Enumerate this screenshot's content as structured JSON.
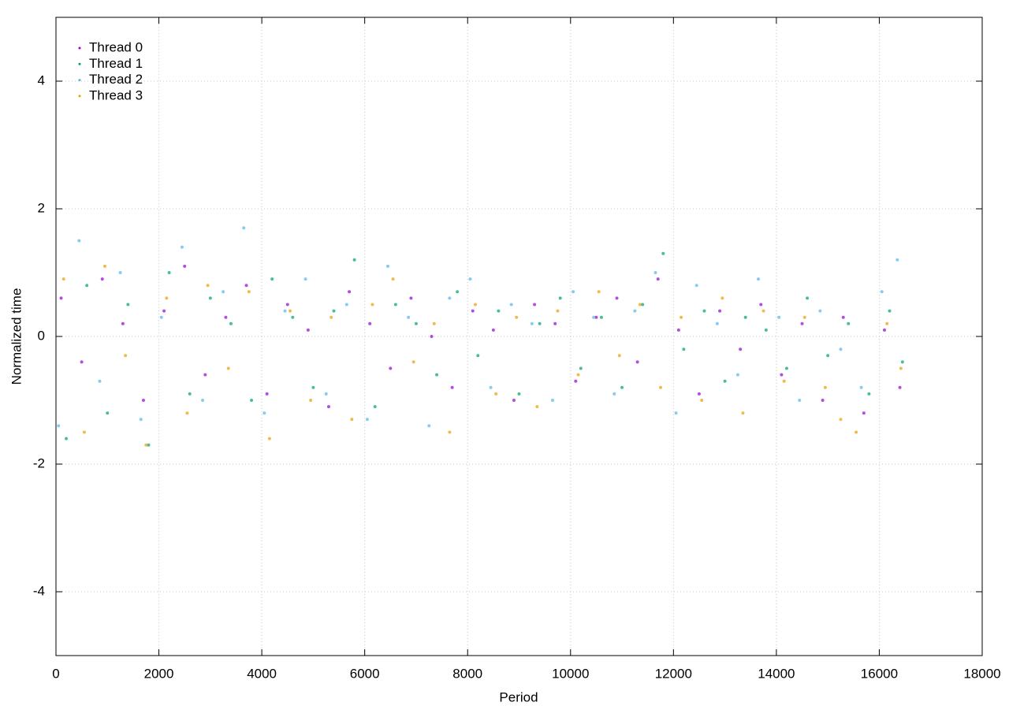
{
  "chart_data": {
    "type": "scatter",
    "x_label": "Period",
    "y_label": "Normalized time",
    "xlim": [
      0,
      18000
    ],
    "ylim": [
      -5,
      5
    ],
    "xticks": [
      0,
      2000,
      4000,
      6000,
      8000,
      10000,
      12000,
      14000,
      16000,
      18000
    ],
    "yticks": [
      -4,
      -2,
      0,
      2,
      4
    ],
    "grid": true,
    "legend": "top-left",
    "series": [
      {
        "name": "Thread 0",
        "color": "#9400d3",
        "x": [
          100,
          500,
          900,
          1300,
          1700,
          2100,
          2500,
          2900,
          3300,
          3700,
          4100,
          4500,
          4900,
          5300,
          5700,
          6100,
          6500,
          6900,
          7300,
          7700,
          8100,
          8500,
          8900,
          9300,
          9700,
          10100,
          10500,
          10900,
          11300,
          11700,
          12100,
          12500,
          12900,
          13300,
          13700,
          14100,
          14500,
          14900,
          15300,
          15700,
          16100,
          16400
        ],
        "y": [
          0.6,
          -0.4,
          0.9,
          0.2,
          -1.0,
          0.4,
          1.1,
          -0.6,
          0.3,
          0.8,
          -0.9,
          0.5,
          0.1,
          -1.1,
          0.7,
          0.2,
          -0.5,
          0.6,
          0.0,
          -0.8,
          0.4,
          0.1,
          -1.0,
          0.5,
          0.2,
          -0.7,
          0.3,
          0.6,
          -0.4,
          0.9,
          0.1,
          -0.9,
          0.4,
          -0.2,
          0.5,
          -0.6,
          0.2,
          -1.0,
          0.3,
          -1.2,
          0.1,
          -0.8
        ]
      },
      {
        "name": "Thread 1",
        "color": "#009e73",
        "x": [
          200,
          600,
          1000,
          1400,
          1800,
          2200,
          2600,
          3000,
          3400,
          3800,
          4200,
          4600,
          5000,
          5400,
          5800,
          6200,
          6600,
          7000,
          7400,
          7800,
          8200,
          8600,
          9000,
          9400,
          9800,
          10200,
          10600,
          11000,
          11400,
          11800,
          12200,
          12600,
          13000,
          13400,
          13800,
          14200,
          14600,
          15000,
          15400,
          15800,
          16200,
          16450
        ],
        "y": [
          -1.6,
          0.8,
          -1.2,
          0.5,
          -1.7,
          1.0,
          -0.9,
          0.6,
          0.2,
          -1.0,
          0.9,
          0.3,
          -0.8,
          0.4,
          1.2,
          -1.1,
          0.5,
          0.2,
          -0.6,
          0.7,
          -0.3,
          0.4,
          -0.9,
          0.2,
          0.6,
          -0.5,
          0.3,
          -0.8,
          0.5,
          1.3,
          -0.2,
          0.4,
          -0.7,
          0.3,
          0.1,
          -0.5,
          0.6,
          -0.3,
          0.2,
          -0.9,
          0.4,
          -0.4
        ]
      },
      {
        "name": "Thread 2",
        "color": "#56b4e9",
        "x": [
          50,
          450,
          850,
          1250,
          1650,
          2050,
          2450,
          2850,
          3250,
          3650,
          4050,
          4450,
          4850,
          5250,
          5650,
          6050,
          6450,
          6850,
          7250,
          7650,
          8050,
          8450,
          8850,
          9250,
          9650,
          10050,
          10450,
          10850,
          11250,
          11650,
          12050,
          12450,
          12850,
          13250,
          13650,
          14050,
          14450,
          14850,
          15250,
          15650,
          16050,
          16350
        ],
        "y": [
          -1.4,
          1.5,
          -0.7,
          1.0,
          -1.3,
          0.3,
          1.4,
          -1.0,
          0.7,
          1.7,
          -1.2,
          0.4,
          0.9,
          -0.9,
          0.5,
          -1.3,
          1.1,
          0.3,
          -1.4,
          0.6,
          0.9,
          -0.8,
          0.5,
          0.2,
          -1.0,
          0.7,
          0.3,
          -0.9,
          0.4,
          1.0,
          -1.2,
          0.8,
          0.2,
          -0.6,
          0.9,
          0.3,
          -1.0,
          0.4,
          -0.2,
          -0.8,
          0.7,
          1.2
        ]
      },
      {
        "name": "Thread 3",
        "color": "#e69f00",
        "x": [
          150,
          550,
          950,
          1350,
          1750,
          2150,
          2550,
          2950,
          3350,
          3750,
          4150,
          4550,
          4950,
          5350,
          5750,
          6150,
          6550,
          6950,
          7350,
          7650,
          8150,
          8550,
          8950,
          9350,
          9750,
          10150,
          10550,
          10950,
          11350,
          11750,
          12150,
          12550,
          12950,
          13350,
          13750,
          14150,
          14550,
          14950,
          15250,
          15550,
          16150,
          16420
        ],
        "y": [
          0.9,
          -1.5,
          1.1,
          -0.3,
          -1.7,
          0.6,
          -1.2,
          0.8,
          -0.5,
          0.7,
          -1.6,
          0.4,
          -1.0,
          0.3,
          -1.3,
          0.5,
          0.9,
          -0.4,
          0.2,
          -1.5,
          0.5,
          -0.9,
          0.3,
          -1.1,
          0.4,
          -0.6,
          0.7,
          -0.3,
          0.5,
          -0.8,
          0.3,
          -1.0,
          0.6,
          -1.2,
          0.4,
          -0.7,
          0.3,
          -0.8,
          -1.3,
          -1.5,
          0.2,
          -0.5
        ]
      }
    ]
  }
}
